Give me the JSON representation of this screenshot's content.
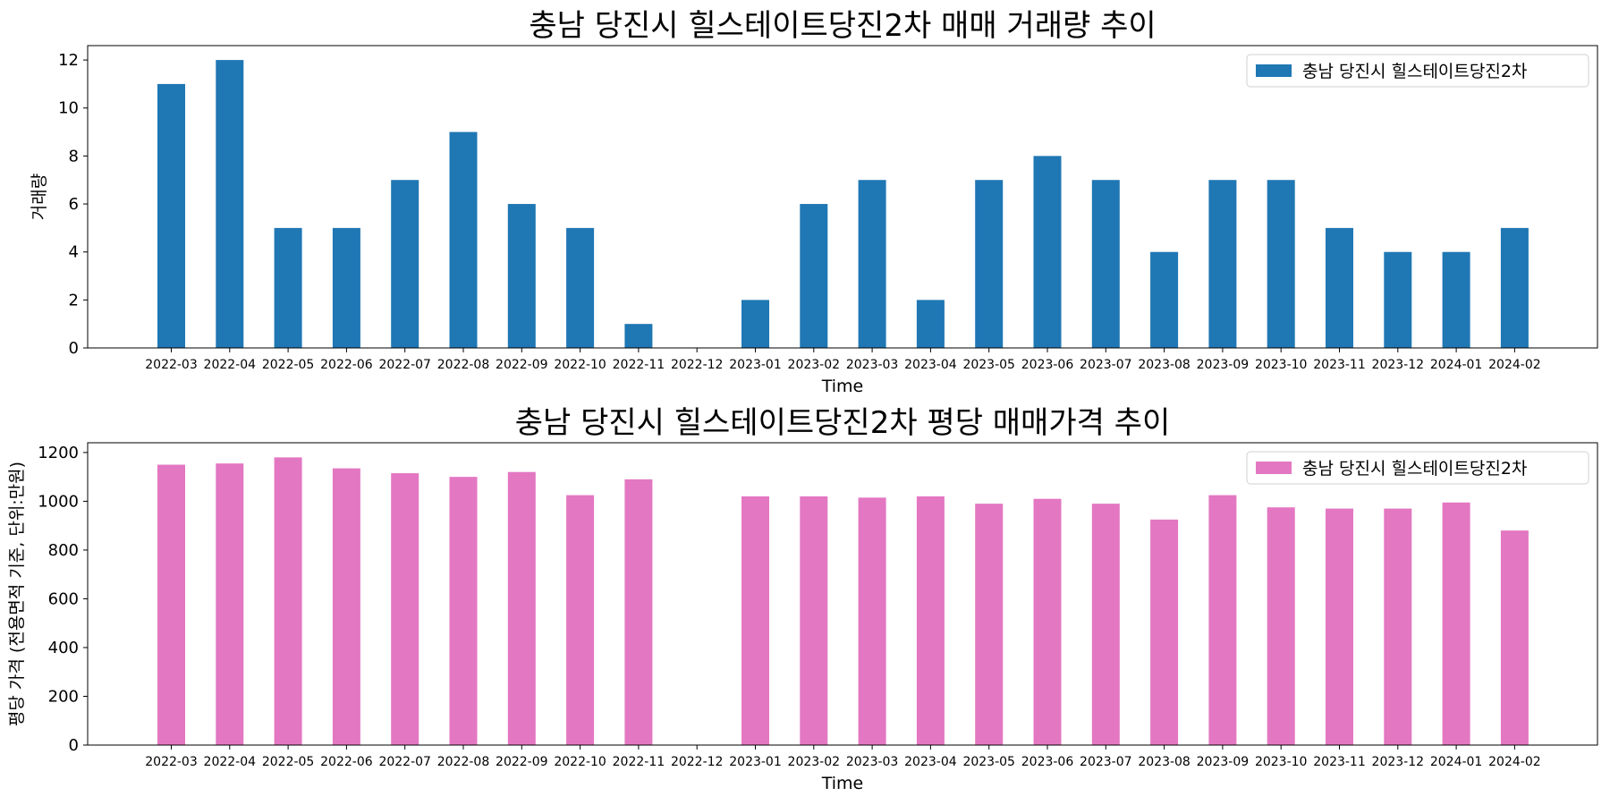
{
  "chart_data": [
    {
      "type": "bar",
      "title": "충남 당진시 힐스테이트당진2차 매매 거래량 추이",
      "xlabel": "Time",
      "ylabel": "거래량",
      "ylim": [
        0,
        12.6
      ],
      "yticks": [
        0,
        2,
        4,
        6,
        8,
        10,
        12
      ],
      "grid": false,
      "legend_position": "top-right",
      "categories": [
        "2022-03",
        "2022-04",
        "2022-05",
        "2022-06",
        "2022-07",
        "2022-08",
        "2022-09",
        "2022-10",
        "2022-11",
        "2022-12",
        "2023-01",
        "2023-02",
        "2023-03",
        "2023-04",
        "2023-05",
        "2023-06",
        "2023-07",
        "2023-08",
        "2023-09",
        "2023-10",
        "2023-11",
        "2023-12",
        "2024-01",
        "2024-02"
      ],
      "series": [
        {
          "name": "충남 당진시 힐스테이트당진2차",
          "color": "#1f77b4",
          "values": [
            11,
            12,
            5,
            5,
            7,
            9,
            6,
            5,
            1,
            0,
            2,
            6,
            7,
            2,
            7,
            8,
            7,
            4,
            7,
            7,
            5,
            4,
            4,
            5
          ]
        }
      ]
    },
    {
      "type": "bar",
      "title": "충남 당진시 힐스테이트당진2차 평당 매매가격 추이",
      "xlabel": "Time",
      "ylabel": "평당 가격 (전용면적 기준, 단위:만원)",
      "ylim": [
        0,
        1240
      ],
      "yticks": [
        0,
        200,
        400,
        600,
        800,
        1000,
        1200
      ],
      "grid": false,
      "legend_position": "top-right",
      "categories": [
        "2022-03",
        "2022-04",
        "2022-05",
        "2022-06",
        "2022-07",
        "2022-08",
        "2022-09",
        "2022-10",
        "2022-11",
        "2022-12",
        "2023-01",
        "2023-02",
        "2023-03",
        "2023-04",
        "2023-05",
        "2023-06",
        "2023-07",
        "2023-08",
        "2023-09",
        "2023-10",
        "2023-11",
        "2023-12",
        "2024-01",
        "2024-02"
      ],
      "series": [
        {
          "name": "충남 당진시 힐스테이트당진2차",
          "color": "#e377c2",
          "values": [
            1150,
            1155,
            1180,
            1135,
            1115,
            1100,
            1120,
            1025,
            1090,
            null,
            1020,
            1020,
            1015,
            1020,
            990,
            1010,
            990,
            925,
            1025,
            975,
            970,
            970,
            995,
            880
          ]
        }
      ]
    }
  ]
}
